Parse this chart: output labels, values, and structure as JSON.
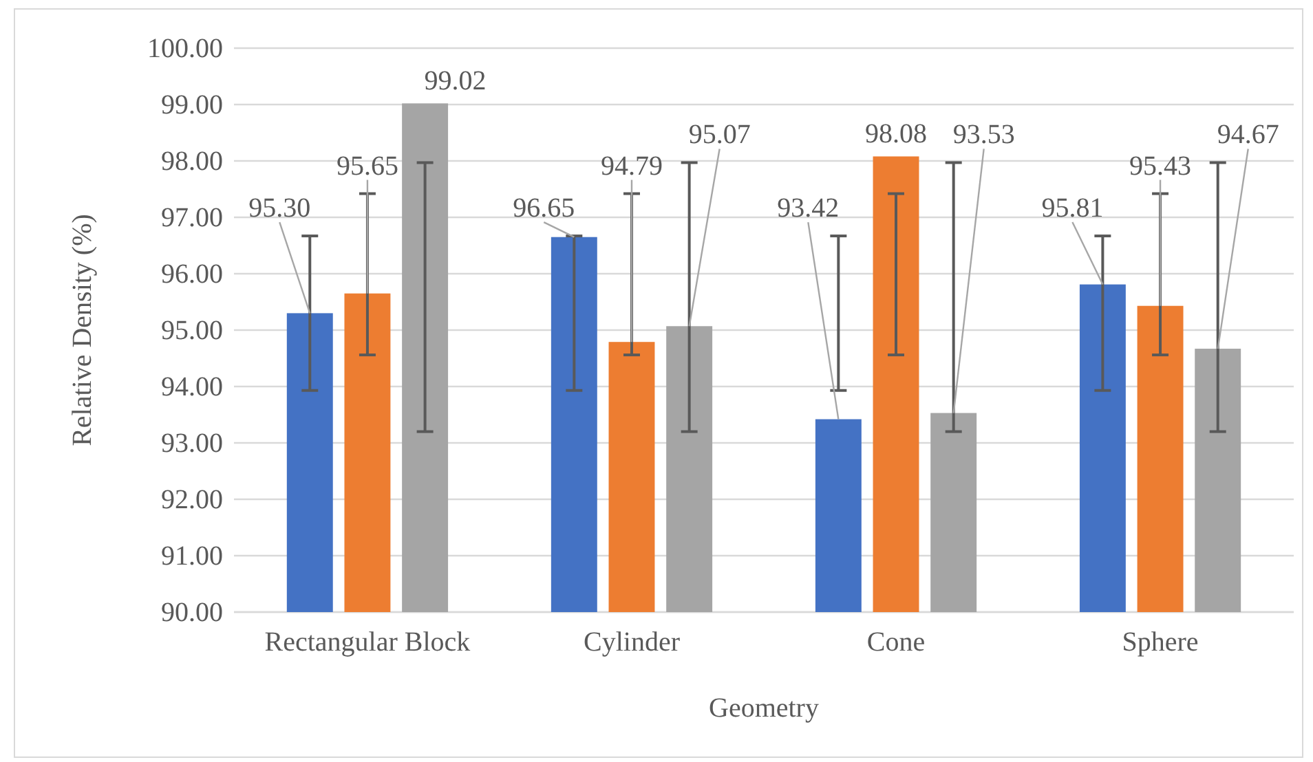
{
  "chart_data": {
    "type": "bar",
    "xlabel": "Geometry",
    "ylabel": "Relative Density (%)",
    "categories": [
      "Rectangular Block",
      "Cylinder",
      "Cone",
      "Sphere"
    ],
    "series": [
      {
        "color": "#4472c4",
        "values": [
          95.3,
          96.65,
          93.42,
          95.81
        ],
        "value_labels": [
          "95.30",
          "96.65",
          "93.42",
          "95.81"
        ],
        "errors": [
          [
            93.93,
            96.67
          ],
          [
            93.93,
            96.67
          ],
          [
            93.93,
            96.67
          ],
          [
            93.93,
            96.67
          ]
        ]
      },
      {
        "color": "#ed7d31",
        "values": [
          95.65,
          94.79,
          98.08,
          95.43
        ],
        "value_labels": [
          "95.65",
          "94.79",
          "98.08",
          "95.43"
        ],
        "errors": [
          [
            94.56,
            97.42
          ],
          [
            94.56,
            97.42
          ],
          [
            94.56,
            97.42
          ],
          [
            94.56,
            97.42
          ]
        ]
      },
      {
        "color": "#a5a5a5",
        "values": [
          99.02,
          95.07,
          93.53,
          94.67
        ],
        "value_labels": [
          "99.02",
          "95.07",
          "93.53",
          "94.67"
        ],
        "errors": [
          [
            93.2,
            97.97
          ],
          [
            93.2,
            97.97
          ],
          [
            93.2,
            97.97
          ],
          [
            93.2,
            97.97
          ]
        ]
      }
    ],
    "ylim": [
      90,
      100
    ],
    "yticks": [
      {
        "value": 90,
        "label": "90.00"
      },
      {
        "value": 91,
        "label": "91.00"
      },
      {
        "value": 92,
        "label": "92.00"
      },
      {
        "value": 93,
        "label": "93.00"
      },
      {
        "value": 94,
        "label": "94.00"
      },
      {
        "value": 95,
        "label": "95.00"
      },
      {
        "value": 96,
        "label": "96.00"
      },
      {
        "value": 97,
        "label": "97.00"
      },
      {
        "value": 98,
        "label": "98.00"
      },
      {
        "value": 99,
        "label": "99.00"
      },
      {
        "value": 100,
        "label": "100.00"
      }
    ],
    "grid": "y"
  }
}
